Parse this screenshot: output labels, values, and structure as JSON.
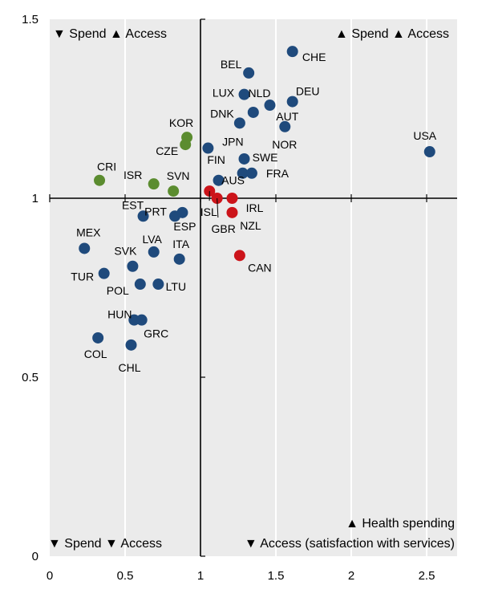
{
  "chart_data": {
    "type": "scatter",
    "title": "",
    "xlabel": "",
    "ylabel": "",
    "xlim": [
      0,
      2.7
    ],
    "ylim": [
      0,
      1.5
    ],
    "xticks": [
      "0",
      "0.5",
      "1",
      "1.5",
      "2",
      "2.5"
    ],
    "yticks": [
      "0",
      "0.5",
      "1",
      "1.5"
    ],
    "reference_lines": {
      "x": 1,
      "y": 1
    },
    "quadrant_labels": {
      "top_left": "▼ Spend ▲ Access",
      "top_right": "▲ Spend ▲ Access",
      "bottom_left": "▼ Spend ▼ Access",
      "bottom_right_1": "▲ Health spending",
      "bottom_right_2": "▼ Access (satisfaction with services)"
    },
    "colors": {
      "blue": "#1f4a7c",
      "green": "#5b8c2f",
      "red": "#cc141a"
    },
    "points": [
      {
        "name": "CHE",
        "x": 1.61,
        "y": 1.41,
        "group": "blue"
      },
      {
        "name": "BEL",
        "x": 1.32,
        "y": 1.35,
        "group": "blue"
      },
      {
        "name": "LUX",
        "x": 1.29,
        "y": 1.29,
        "group": "blue"
      },
      {
        "name": "NLD",
        "x": 1.46,
        "y": 1.26,
        "group": "blue"
      },
      {
        "name": "NOR",
        "x": 1.35,
        "y": 1.24,
        "group": "blue"
      },
      {
        "name": "DNK",
        "x": 1.26,
        "y": 1.21,
        "group": "blue"
      },
      {
        "name": "DEU",
        "x": 1.61,
        "y": 1.27,
        "group": "blue"
      },
      {
        "name": "AUT",
        "x": 1.56,
        "y": 1.2,
        "group": "blue"
      },
      {
        "name": "JPN",
        "x": 1.05,
        "y": 1.14,
        "group": "blue"
      },
      {
        "name": "FIN",
        "x": 1.28,
        "y": 1.07,
        "group": "blue"
      },
      {
        "name": "SWE",
        "x": 1.29,
        "y": 1.11,
        "group": "blue"
      },
      {
        "name": "AUS",
        "x": 1.12,
        "y": 1.05,
        "group": "blue"
      },
      {
        "name": "FRA",
        "x": 1.34,
        "y": 1.07,
        "group": "blue"
      },
      {
        "name": "USA",
        "x": 2.52,
        "y": 1.13,
        "group": "blue"
      },
      {
        "name": "KOR",
        "x": 0.91,
        "y": 1.17,
        "group": "green"
      },
      {
        "name": "CZE",
        "x": 0.9,
        "y": 1.15,
        "group": "green"
      },
      {
        "name": "CRI",
        "x": 0.33,
        "y": 1.05,
        "group": "green"
      },
      {
        "name": "ISR",
        "x": 0.69,
        "y": 1.04,
        "group": "green"
      },
      {
        "name": "SVN",
        "x": 0.82,
        "y": 1.02,
        "group": "green"
      },
      {
        "name": "ISL",
        "x": 1.06,
        "y": 1.02,
        "group": "red"
      },
      {
        "name": "GBR",
        "x": 1.11,
        "y": 1.0,
        "group": "red"
      },
      {
        "name": "IRL",
        "x": 1.21,
        "y": 1.0,
        "group": "red"
      },
      {
        "name": "NZL",
        "x": 1.21,
        "y": 0.96,
        "group": "red"
      },
      {
        "name": "CAN",
        "x": 1.26,
        "y": 0.84,
        "group": "red"
      },
      {
        "name": "EST",
        "x": 0.62,
        "y": 0.95,
        "group": "blue"
      },
      {
        "name": "PRT",
        "x": 0.83,
        "y": 0.95,
        "group": "blue"
      },
      {
        "name": "ESP",
        "x": 0.88,
        "y": 0.96,
        "group": "blue"
      },
      {
        "name": "MEX",
        "x": 0.23,
        "y": 0.86,
        "group": "blue"
      },
      {
        "name": "LVA",
        "x": 0.69,
        "y": 0.85,
        "group": "blue"
      },
      {
        "name": "ITA",
        "x": 0.86,
        "y": 0.83,
        "group": "blue"
      },
      {
        "name": "SVK",
        "x": 0.55,
        "y": 0.81,
        "group": "blue"
      },
      {
        "name": "TUR",
        "x": 0.36,
        "y": 0.79,
        "group": "blue"
      },
      {
        "name": "POL",
        "x": 0.6,
        "y": 0.76,
        "group": "blue"
      },
      {
        "name": "LTU",
        "x": 0.72,
        "y": 0.76,
        "group": "blue"
      },
      {
        "name": "HUN",
        "x": 0.56,
        "y": 0.66,
        "group": "blue"
      },
      {
        "name": "GRC",
        "x": 0.61,
        "y": 0.66,
        "group": "blue"
      },
      {
        "name": "COL",
        "x": 0.32,
        "y": 0.61,
        "group": "blue"
      },
      {
        "name": "CHL",
        "x": 0.54,
        "y": 0.59,
        "group": "blue"
      }
    ]
  }
}
